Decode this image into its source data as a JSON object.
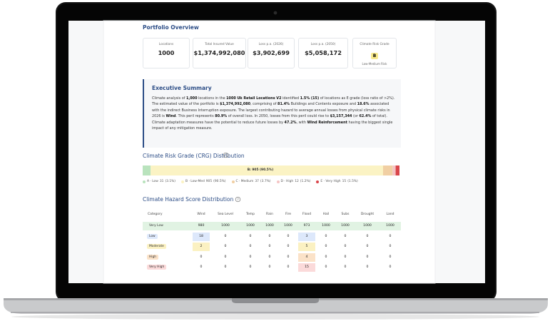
{
  "section_title": "Portfolio Overview",
  "cards": [
    {
      "label": "Locations",
      "value": "1000"
    },
    {
      "label": "Total Insured Value",
      "value": "$1,374,992,080"
    },
    {
      "label": "Loss p.a. (2026)",
      "value": "$3,902,699"
    },
    {
      "label": "Loss p.a. (2050)",
      "value": "$5,058,172"
    },
    {
      "label": "Climate Risk Grade",
      "value": "B",
      "note": "Low-Medium Risk"
    }
  ],
  "summary": {
    "title": "Executive Summary",
    "segments": [
      {
        "text": "Climate analysis of ",
        "bold": false
      },
      {
        "text": "1,000",
        "bold": true
      },
      {
        "text": " locations in the ",
        "bold": false
      },
      {
        "text": "1000 Uk Retail Locations V2",
        "bold": true
      },
      {
        "text": " identified ",
        "bold": false
      },
      {
        "text": "1.5% (15)",
        "bold": true
      },
      {
        "text": " of locations as E grade (loss ratio of >2%). The estimated value of the portfolio is ",
        "bold": false
      },
      {
        "text": "$1,374,992,080",
        "bold": true
      },
      {
        "text": ", comprising of ",
        "bold": false
      },
      {
        "text": "81.4%",
        "bold": true
      },
      {
        "text": " Buildings and Contents exposure and ",
        "bold": false
      },
      {
        "text": "18.6%",
        "bold": true
      },
      {
        "text": " associated with the indirect Business Interruption exposure. The largest contributing hazard to average annual losses from physical climate risks in 2026 is ",
        "bold": false
      },
      {
        "text": "Wind",
        "bold": true
      },
      {
        "text": ". This peril represents ",
        "bold": false
      },
      {
        "text": "80.9%",
        "bold": true
      },
      {
        "text": " of overall loss. In 2050, losses from this peril could rise to ",
        "bold": false
      },
      {
        "text": "$3,157,344",
        "bold": true
      },
      {
        "text": " (or ",
        "bold": false
      },
      {
        "text": "62.4%",
        "bold": true
      },
      {
        "text": " of total). Climate adaptation measures have the potential to reduce future losses by ",
        "bold": false
      },
      {
        "text": "47.2%",
        "bold": true
      },
      {
        "text": ", with ",
        "bold": false
      },
      {
        "text": "Wind Reinforcement",
        "bold": true
      },
      {
        "text": " having the biggest single impact of any mitigation measure.",
        "bold": false
      }
    ]
  },
  "crg": {
    "title": "Climate Risk Grade (CRG) Distribution",
    "bar_label": "B: 905 (90.5%)",
    "grades": [
      {
        "label": "A · Low",
        "count": 31,
        "percent": "(3.1%)",
        "color": "#b9e3bd"
      },
      {
        "label": "B · Low-Med",
        "count": 905,
        "percent": "(90.5%)",
        "color": "#fbf3c4"
      },
      {
        "label": "C · Medium",
        "count": 37,
        "percent": "(3.7%)",
        "color": "#f1cfa3"
      },
      {
        "label": "D · High",
        "count": 12,
        "percent": "(1.2%)",
        "color": "#f5c4c4"
      },
      {
        "label": "E · Very High",
        "count": 15,
        "percent": "(1.5%)",
        "color": "#d9464b"
      }
    ]
  },
  "hazard": {
    "title": "Climate Hazard Score Distribution",
    "columns": [
      "Category",
      "Wind",
      "Sea Level",
      "Temp",
      "Rain",
      "Fire",
      "Flood",
      "Hail",
      "Subs",
      "Drought",
      "Land"
    ],
    "rows": [
      {
        "category": "Very Low",
        "color": "#e1f3e3",
        "values": [
          980,
          1000,
          1000,
          1000,
          1000,
          973,
          1000,
          1000,
          1000,
          1000
        ]
      },
      {
        "category": "Low",
        "color": "#dde8fb",
        "values": [
          18,
          0,
          0,
          0,
          0,
          3,
          0,
          0,
          0,
          0
        ]
      },
      {
        "category": "Moderate",
        "color": "#fbf1c2",
        "values": [
          2,
          0,
          0,
          0,
          0,
          5,
          0,
          0,
          0,
          0
        ]
      },
      {
        "category": "High",
        "color": "#fbe2c8",
        "values": [
          0,
          0,
          0,
          0,
          0,
          4,
          0,
          0,
          0,
          0
        ]
      },
      {
        "category": "Very High",
        "color": "#fbdada",
        "values": [
          0,
          0,
          0,
          0,
          0,
          15,
          0,
          0,
          0,
          0
        ]
      }
    ]
  }
}
